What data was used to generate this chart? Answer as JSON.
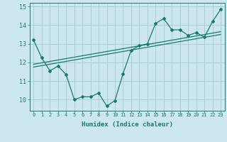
{
  "title": "",
  "xlabel": "Humidex (Indice chaleur)",
  "ylabel": "",
  "bg_color": "#cce8ec",
  "grid_color": "#aacfd4",
  "line_color": "#1a7a6e",
  "xlim": [
    -0.5,
    23.5
  ],
  "ylim": [
    9.4,
    15.2
  ],
  "xticks": [
    0,
    1,
    2,
    3,
    4,
    5,
    6,
    7,
    8,
    9,
    10,
    11,
    12,
    13,
    14,
    15,
    16,
    17,
    18,
    19,
    20,
    21,
    22,
    23
  ],
  "yticks": [
    10,
    11,
    12,
    13,
    14,
    15
  ],
  "data_x": [
    0,
    1,
    2,
    3,
    4,
    5,
    6,
    7,
    8,
    9,
    10,
    11,
    12,
    13,
    14,
    15,
    16,
    17,
    18,
    19,
    20,
    21,
    22,
    23
  ],
  "data_y": [
    13.2,
    12.25,
    11.55,
    11.8,
    11.35,
    10.0,
    10.15,
    10.15,
    10.35,
    9.65,
    9.95,
    11.4,
    12.65,
    12.9,
    13.0,
    14.1,
    14.35,
    13.75,
    13.75,
    13.45,
    13.6,
    13.35,
    14.2,
    14.85
  ],
  "trend1_x": [
    0,
    23
  ],
  "trend1_y": [
    11.75,
    13.5
  ],
  "trend2_x": [
    0,
    23
  ],
  "trend2_y": [
    11.9,
    13.65
  ]
}
